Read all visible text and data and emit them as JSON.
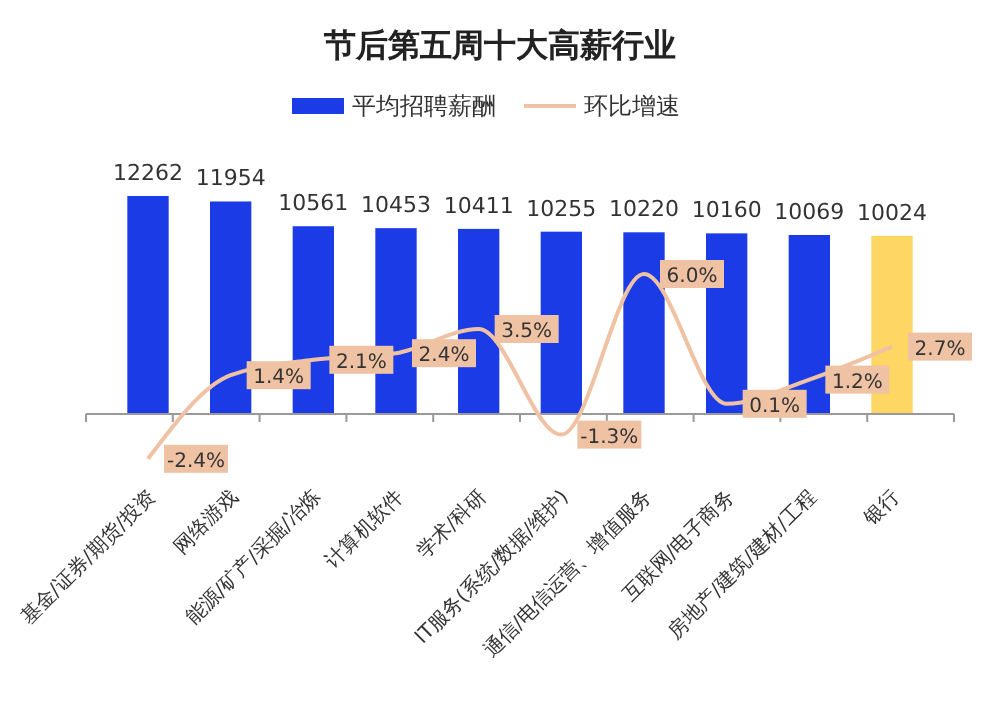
{
  "chart_data": {
    "type": "bar",
    "title": "节后第五周十大高薪行业",
    "categories": [
      "基金/证券/期货/投资",
      "网络游戏",
      "能源/矿产/采掘/冶炼",
      "计算机软件",
      "学术/科研",
      "IT服务(系统/数据/维护)",
      "通信/电信运营、增值服务",
      "互联网/电子商务",
      "房地产/建筑/建材/工程",
      "银行"
    ],
    "series": [
      {
        "name": "平均招聘薪酬",
        "color": "#1b3be6",
        "colors": [
          "#1b3be6",
          "#1b3be6",
          "#1b3be6",
          "#1b3be6",
          "#1b3be6",
          "#1b3be6",
          "#1b3be6",
          "#1b3be6",
          "#1b3be6",
          "#fdd663"
        ],
        "values": [
          12262,
          11954,
          10561,
          10453,
          10411,
          10255,
          10220,
          10160,
          10069,
          10024
        ]
      },
      {
        "name": "环比增速",
        "type": "line",
        "axis": "y2",
        "color": "#efc2a4",
        "values": [
          -2.4,
          1.4,
          2.1,
          2.4,
          3.5,
          -1.3,
          6.0,
          0.1,
          1.2,
          2.7
        ],
        "value_labels": [
          "-2.4%",
          "1.4%",
          "2.1%",
          "2.4%",
          "3.5%",
          "-1.3%",
          "6.0%",
          "0.1%",
          "1.2%",
          "2.7%"
        ]
      }
    ],
    "data_labels": true,
    "legend": "top",
    "grid": false
  }
}
